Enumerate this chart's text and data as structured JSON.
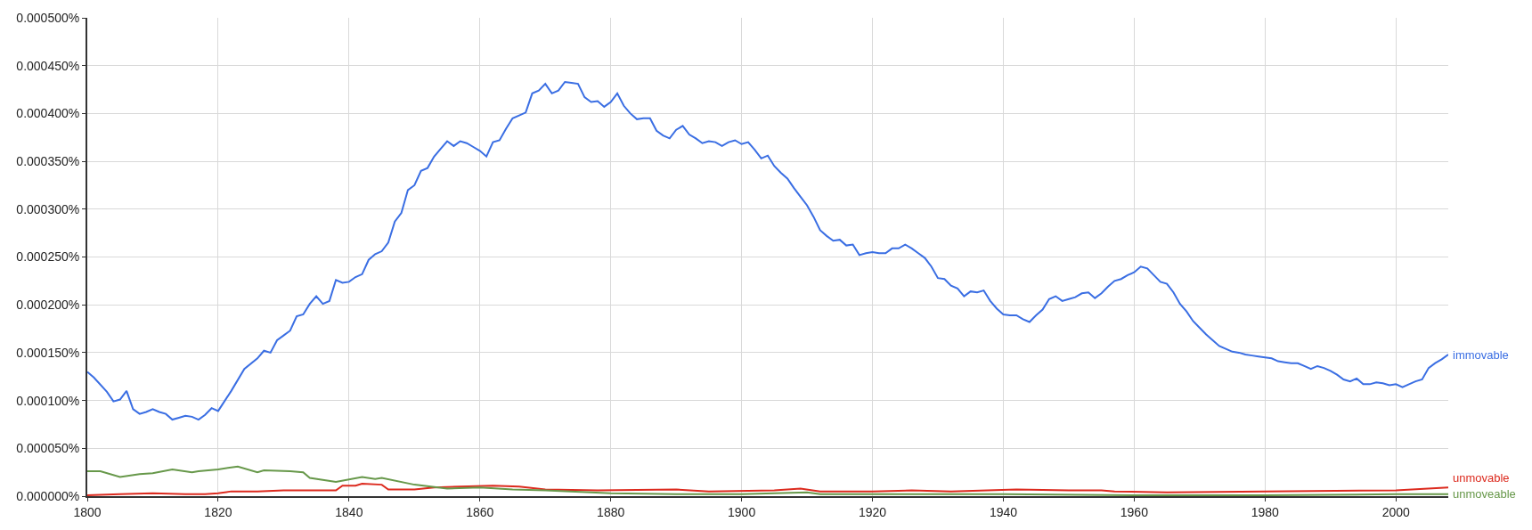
{
  "chart_data": {
    "type": "line",
    "series": [
      {
        "name": "immovable",
        "color": "#3a6ee3",
        "x": [
          1800,
          1801,
          1803,
          1804,
          1805,
          1806,
          1807,
          1808,
          1809,
          1810,
          1811,
          1812,
          1813,
          1814,
          1815,
          1816,
          1817,
          1818,
          1819,
          1820,
          1822,
          1824,
          1826,
          1827,
          1828,
          1829,
          1830,
          1831,
          1832,
          1833,
          1834,
          1835,
          1836,
          1837,
          1838,
          1839,
          1840,
          1841,
          1842,
          1843,
          1844,
          1845,
          1846,
          1847,
          1848,
          1849,
          1850,
          1851,
          1852,
          1853,
          1854,
          1855,
          1856,
          1857,
          1858,
          1859,
          1860,
          1861,
          1862,
          1863,
          1864,
          1865,
          1866,
          1867,
          1868,
          1869,
          1870,
          1871,
          1872,
          1873,
          1874,
          1875,
          1876,
          1877,
          1878,
          1879,
          1880,
          1881,
          1882,
          1883,
          1884,
          1885,
          1886,
          1887,
          1888,
          1889,
          1890,
          1891,
          1892,
          1893,
          1894,
          1895,
          1896,
          1897,
          1898,
          1899,
          1900,
          1901,
          1902,
          1903,
          1904,
          1905,
          1906,
          1907,
          1908,
          1909,
          1910,
          1911,
          1912,
          1913,
          1914,
          1915,
          1916,
          1917,
          1918,
          1919,
          1920,
          1921,
          1922,
          1923,
          1924,
          1925,
          1926,
          1927,
          1928,
          1929,
          1930,
          1931,
          1932,
          1933,
          1934,
          1935,
          1936,
          1937,
          1938,
          1939,
          1940,
          1941,
          1942,
          1943,
          1944,
          1945,
          1946,
          1947,
          1948,
          1949,
          1950,
          1951,
          1952,
          1953,
          1954,
          1955,
          1956,
          1957,
          1958,
          1959,
          1960,
          1961,
          1962,
          1963,
          1964,
          1965,
          1966,
          1967,
          1968,
          1969,
          1970,
          1971,
          1972,
          1973,
          1974,
          1975,
          1976,
          1977,
          1978,
          1979,
          1980,
          1981,
          1982,
          1983,
          1984,
          1985,
          1986,
          1987,
          1988,
          1989,
          1990,
          1991,
          1992,
          1993,
          1994,
          1995,
          1996,
          1997,
          1998,
          1999,
          2000,
          2001,
          2002,
          2003,
          2004,
          2005,
          2006,
          2007,
          2008
        ],
        "values": [
          0.00013,
          0.000124,
          0.000109,
          9.9e-05,
          0.000101,
          0.00011,
          9.1e-05,
          8.6e-05,
          8.8e-05,
          9.1e-05,
          8.8e-05,
          8.6e-05,
          8e-05,
          8.2e-05,
          8.4e-05,
          8.3e-05,
          8e-05,
          8.5e-05,
          9.2e-05,
          8.9e-05,
          0.00011,
          0.000133,
          0.000144,
          0.000152,
          0.00015,
          0.000163,
          0.000168,
          0.000173,
          0.000188,
          0.00019,
          0.000201,
          0.000209,
          0.000201,
          0.000204,
          0.000226,
          0.000223,
          0.000224,
          0.000229,
          0.000232,
          0.000247,
          0.000253,
          0.000256,
          0.000265,
          0.000287,
          0.000296,
          0.00032,
          0.000325,
          0.00034,
          0.000343,
          0.000355,
          0.000363,
          0.000371,
          0.000366,
          0.000371,
          0.000369,
          0.000365,
          0.000361,
          0.000355,
          0.00037,
          0.000372,
          0.000384,
          0.000395,
          0.000398,
          0.000401,
          0.000421,
          0.000424,
          0.000431,
          0.000421,
          0.000424,
          0.000433,
          0.000432,
          0.000431,
          0.000417,
          0.000412,
          0.000413,
          0.000407,
          0.000412,
          0.000421,
          0.000408,
          0.0004,
          0.000394,
          0.000395,
          0.000395,
          0.000382,
          0.000377,
          0.000374,
          0.000383,
          0.000387,
          0.000378,
          0.000374,
          0.000369,
          0.000371,
          0.00037,
          0.000366,
          0.00037,
          0.000372,
          0.000368,
          0.00037,
          0.000362,
          0.000353,
          0.000356,
          0.000345,
          0.000338,
          0.000332,
          0.000322,
          0.000313,
          0.000304,
          0.000292,
          0.000278,
          0.000272,
          0.000267,
          0.000268,
          0.000262,
          0.000263,
          0.000252,
          0.000254,
          0.000255,
          0.000254,
          0.000254,
          0.000259,
          0.000259,
          0.000263,
          0.000259,
          0.000254,
          0.000249,
          0.00024,
          0.000228,
          0.000227,
          0.00022,
          0.000217,
          0.000209,
          0.000214,
          0.000213,
          0.000215,
          0.000204,
          0.000196,
          0.00019,
          0.000189,
          0.000189,
          0.000185,
          0.000182,
          0.000189,
          0.000195,
          0.000206,
          0.000209,
          0.000204,
          0.000206,
          0.000208,
          0.000212,
          0.000213,
          0.000207,
          0.000212,
          0.000219,
          0.000225,
          0.000227,
          0.000231,
          0.000234,
          0.00024,
          0.000238,
          0.000231,
          0.000224,
          0.000222,
          0.000213,
          0.000201,
          0.000193,
          0.000183,
          0.000176,
          0.000169,
          0.000163,
          0.000157,
          0.000154,
          0.000151,
          0.00015,
          0.000148,
          0.000147,
          0.000146,
          0.000145,
          0.000144,
          0.000141,
          0.00014,
          0.000139,
          0.000139,
          0.000136,
          0.000133,
          0.000136,
          0.000134,
          0.000131,
          0.000127,
          0.000122,
          0.00012,
          0.000123,
          0.000117,
          0.000117,
          0.000119,
          0.000118,
          0.000116,
          0.000117,
          0.000114,
          0.000117,
          0.00012,
          0.000122,
          0.000134,
          0.000139,
          0.000143,
          0.000148
        ]
      },
      {
        "name": "unmovable",
        "color": "#dc2a1e",
        "x": [
          1800,
          1805,
          1810,
          1815,
          1818,
          1820,
          1822,
          1826,
          1830,
          1835,
          1838,
          1839,
          1841,
          1842,
          1845,
          1846,
          1850,
          1853,
          1857,
          1862,
          1866,
          1870,
          1878,
          1890,
          1895,
          1905,
          1909,
          1912,
          1920,
          1926,
          1932,
          1942,
          1950,
          1955,
          1957,
          1965,
          1980,
          2000,
          2008
        ],
        "values": [
          1e-06,
          2e-06,
          3e-06,
          2e-06,
          2e-06,
          3e-06,
          5e-06,
          5e-06,
          6e-06,
          6e-06,
          6e-06,
          1.1e-05,
          1.1e-05,
          1.3e-05,
          1.2e-05,
          7e-06,
          7e-06,
          9e-06,
          1e-05,
          1.1e-05,
          1e-05,
          7e-06,
          6e-06,
          7e-06,
          5e-06,
          6e-06,
          8e-06,
          5e-06,
          5e-06,
          6e-06,
          5e-06,
          7e-06,
          6e-06,
          6e-06,
          5e-06,
          4e-06,
          5e-06,
          6e-06,
          9e-06
        ]
      },
      {
        "name": "unmoveable",
        "color": "#67984a",
        "x": [
          1800,
          1802,
          1805,
          1808,
          1810,
          1813,
          1816,
          1817,
          1820,
          1823,
          1826,
          1827,
          1831,
          1833,
          1834,
          1838,
          1842,
          1844,
          1845,
          1850,
          1855,
          1860,
          1865,
          1870,
          1880,
          1890,
          1900,
          1905,
          1910,
          1912,
          1940,
          1960,
          1980,
          2000,
          2008
        ],
        "values": [
          2.6e-05,
          2.6e-05,
          2e-05,
          2.3e-05,
          2.4e-05,
          2.8e-05,
          2.5e-05,
          2.6e-05,
          2.8e-05,
          3.1e-05,
          2.5e-05,
          2.7e-05,
          2.6e-05,
          2.5e-05,
          1.9e-05,
          1.5e-05,
          2e-05,
          1.8e-05,
          1.9e-05,
          1.2e-05,
          8e-06,
          9e-06,
          7e-06,
          6e-06,
          3e-06,
          2e-06,
          2e-06,
          3e-06,
          4e-06,
          2e-06,
          2e-06,
          1e-06,
          1e-06,
          2e-06,
          2e-06
        ]
      }
    ],
    "xlim": [
      1800,
      2008
    ],
    "xticks": [
      1800,
      1820,
      1840,
      1860,
      1880,
      1900,
      1920,
      1940,
      1960,
      1980,
      2000
    ],
    "ylim": [
      0,
      0.0005
    ],
    "yticks": [
      {
        "value": 0,
        "label": "0.000000%"
      },
      {
        "value": 5e-05,
        "label": "0.000050%"
      },
      {
        "value": 0.0001,
        "label": "0.000100%"
      },
      {
        "value": 0.00015,
        "label": "0.000150%"
      },
      {
        "value": 0.0002,
        "label": "0.000200%"
      },
      {
        "value": 0.00025,
        "label": "0.000250%"
      },
      {
        "value": 0.0003,
        "label": "0.000300%"
      },
      {
        "value": 0.00035,
        "label": "0.000350%"
      },
      {
        "value": 0.0004,
        "label": "0.000400%"
      },
      {
        "value": 0.00045,
        "label": "0.000450%"
      },
      {
        "value": 0.0005,
        "label": "0.000500%"
      }
    ],
    "grid": true,
    "legend": false,
    "marker": "none",
    "line_style": "solid"
  }
}
